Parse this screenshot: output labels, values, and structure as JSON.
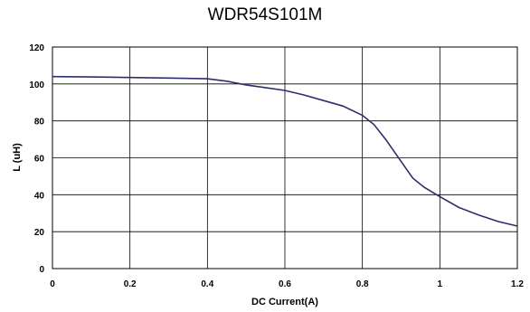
{
  "chart_data": {
    "type": "line",
    "title": "WDR54S101M",
    "xlabel": "DC Current(A)",
    "ylabel": "L (uH)",
    "xlim": [
      0,
      1.2
    ],
    "ylim": [
      0,
      120
    ],
    "x_ticks": [
      "0",
      "0.2",
      "0.4",
      "0.6",
      "0.8",
      "1",
      "1.2"
    ],
    "y_ticks": [
      "0",
      "20",
      "40",
      "60",
      "80",
      "100",
      "120"
    ],
    "grid": true,
    "line_color": "#2b2f6b",
    "series": [
      {
        "x": [
          0,
          0.1,
          0.2,
          0.3,
          0.4,
          0.45,
          0.5,
          0.55,
          0.6,
          0.65,
          0.7,
          0.75,
          0.8,
          0.83,
          0.86,
          0.9,
          0.93,
          0.96,
          1.0,
          1.05,
          1.1,
          1.15,
          1.2
        ],
        "y": [
          104,
          103.8,
          103.5,
          103.2,
          102.8,
          101.5,
          99.5,
          98,
          96.5,
          94,
          91,
          88,
          83,
          78,
          70,
          58,
          49,
          44,
          39,
          33,
          29,
          25.5,
          23
        ]
      }
    ]
  }
}
